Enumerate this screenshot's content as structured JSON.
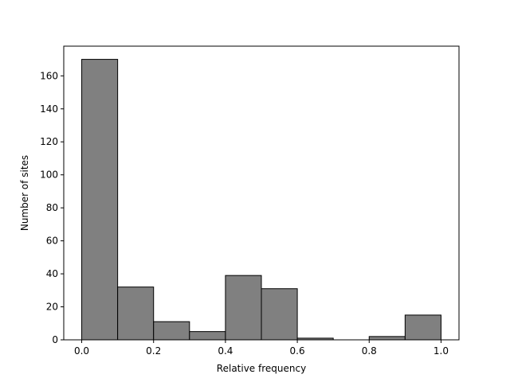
{
  "chart_data": {
    "type": "bar",
    "bin_edges": [
      0.0,
      0.1,
      0.2,
      0.3,
      0.4,
      0.5,
      0.6,
      0.7,
      0.8,
      0.9,
      1.0
    ],
    "values": [
      170,
      32,
      11,
      5,
      39,
      31,
      1,
      0,
      2,
      15
    ],
    "xlabel": "Relative frequency",
    "ylabel": "Number of sites",
    "xlim": [
      -0.05,
      1.05
    ],
    "ylim": [
      0,
      178
    ],
    "xticks": [
      0.0,
      0.2,
      0.4,
      0.6,
      0.8,
      1.0
    ],
    "xtick_labels": [
      "0.0",
      "0.2",
      "0.4",
      "0.6",
      "0.8",
      "1.0"
    ],
    "yticks": [
      0,
      20,
      40,
      60,
      80,
      100,
      120,
      140,
      160
    ],
    "ytick_labels": [
      "0",
      "20",
      "40",
      "60",
      "80",
      "100",
      "120",
      "140",
      "160"
    ],
    "grid": false,
    "bar_color": "#808080",
    "edge_color": "#000000"
  }
}
